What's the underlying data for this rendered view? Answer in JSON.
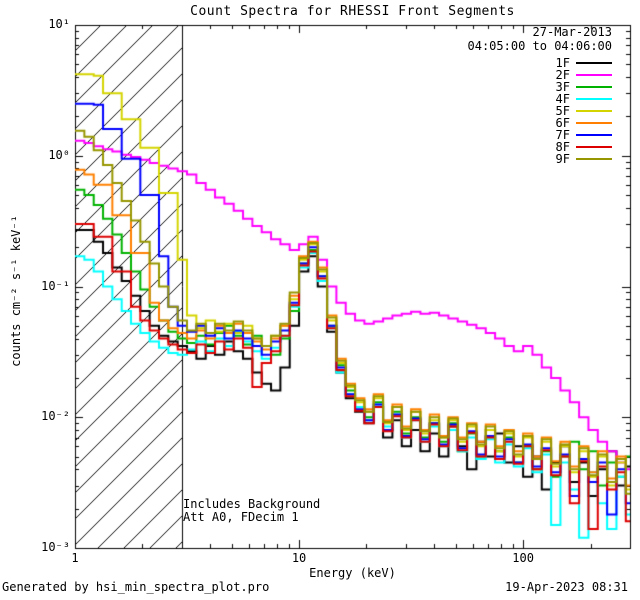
{
  "header": {
    "date": "27-Mar-2013",
    "time_range": "04:05:00 to 04:06:00"
  },
  "annotations": {
    "includes_background": "Includes Background",
    "attenuator": "Att A0, FDecim 1"
  },
  "footer": {
    "left": "Generated by hsi_min_spectra_plot.pro",
    "right": "19-Apr-2023 08:31"
  },
  "chart_data": {
    "type": "line",
    "step_mode": true,
    "title": "Count Spectra for RHESSI Front Segments",
    "xlabel": "Energy (keV)",
    "ylabel": "counts cm⁻² s⁻¹ keV⁻¹",
    "x_scale": "log",
    "y_scale": "log",
    "xlim": [
      1,
      300
    ],
    "ylim": [
      0.001,
      10
    ],
    "grid": false,
    "legend_position": "top-right",
    "hatch_region_kev": [
      1,
      3
    ],
    "xticks": [
      {
        "value": 1,
        "label": "1"
      },
      {
        "value": 10,
        "label": "10"
      },
      {
        "value": 100,
        "label": "100"
      }
    ],
    "yticks": [
      {
        "value": 10,
        "label": "10¹"
      },
      {
        "value": 1,
        "label": "10⁰"
      },
      {
        "value": 0.1,
        "label": "10⁻¹"
      },
      {
        "value": 0.01,
        "label": "10⁻²"
      },
      {
        "value": 0.001,
        "label": "10⁻³"
      }
    ],
    "energies_kev": [
      1.0,
      1.101,
      1.212,
      1.334,
      1.468,
      1.616,
      1.778,
      1.957,
      2.154,
      2.371,
      2.61,
      2.873,
      3.162,
      3.481,
      3.831,
      4.217,
      4.642,
      5.109,
      5.623,
      6.19,
      6.813,
      7.499,
      8.254,
      9.085,
      10.0,
      11.007,
      12.115,
      13.335,
      14.678,
      16.156,
      17.783,
      19.573,
      21.544,
      23.714,
      26.102,
      28.734,
      31.623,
      34.807,
      38.312,
      42.17,
      46.416,
      51.09,
      56.234,
      61.897,
      68.129,
      74.989,
      82.54,
      90.852,
      100.0,
      110.069,
      121.153,
      133.352,
      146.78,
      161.56,
      177.828,
      195.734,
      215.443,
      237.137,
      261.016,
      287.298
    ],
    "series": [
      {
        "name": "1F",
        "color": "#000000",
        "values": [
          0.27,
          0.27,
          0.22,
          0.18,
          0.14,
          0.11,
          0.085,
          0.065,
          0.05,
          0.042,
          0.038,
          0.035,
          0.032,
          0.028,
          0.035,
          0.03,
          0.038,
          0.032,
          0.028,
          0.022,
          0.018,
          0.016,
          0.024,
          0.05,
          0.13,
          0.17,
          0.1,
          0.045,
          0.022,
          0.014,
          0.011,
          0.009,
          0.012,
          0.007,
          0.0095,
          0.006,
          0.008,
          0.0055,
          0.0075,
          0.005,
          0.0085,
          0.006,
          0.004,
          0.0065,
          0.005,
          0.0075,
          0.0045,
          0.006,
          0.0035,
          0.005,
          0.0028,
          0.0045,
          0.006,
          0.0032,
          0.0045,
          0.0025,
          0.004,
          0.0055,
          0.003,
          0.0042
        ]
      },
      {
        "name": "2F",
        "color": "#ff00ff",
        "values": [
          1.3,
          1.25,
          1.18,
          1.12,
          1.08,
          1.02,
          0.98,
          0.93,
          0.88,
          0.84,
          0.8,
          0.76,
          0.72,
          0.62,
          0.55,
          0.48,
          0.43,
          0.38,
          0.33,
          0.29,
          0.26,
          0.23,
          0.21,
          0.19,
          0.21,
          0.24,
          0.16,
          0.1,
          0.075,
          0.062,
          0.055,
          0.052,
          0.054,
          0.057,
          0.06,
          0.062,
          0.064,
          0.062,
          0.063,
          0.06,
          0.057,
          0.054,
          0.051,
          0.048,
          0.044,
          0.04,
          0.035,
          0.032,
          0.035,
          0.03,
          0.024,
          0.02,
          0.016,
          0.013,
          0.01,
          0.008,
          0.0065,
          0.0055,
          0.0045,
          0.004
        ]
      },
      {
        "name": "3F",
        "color": "#00b200",
        "values": [
          0.55,
          0.5,
          0.42,
          0.33,
          0.25,
          0.18,
          0.13,
          0.095,
          0.07,
          0.055,
          0.045,
          0.04,
          0.037,
          0.042,
          0.036,
          0.044,
          0.05,
          0.042,
          0.036,
          0.042,
          0.035,
          0.03,
          0.04,
          0.065,
          0.15,
          0.19,
          0.12,
          0.05,
          0.025,
          0.016,
          0.012,
          0.01,
          0.013,
          0.008,
          0.011,
          0.0075,
          0.01,
          0.007,
          0.009,
          0.0065,
          0.009,
          0.0055,
          0.0075,
          0.005,
          0.008,
          0.0055,
          0.007,
          0.0045,
          0.006,
          0.004,
          0.0055,
          0.0035,
          0.005,
          0.0065,
          0.004,
          0.0055,
          0.003,
          0.0045,
          0.0035,
          0.005
        ]
      },
      {
        "name": "4F",
        "color": "#00ffff",
        "values": [
          0.17,
          0.16,
          0.13,
          0.1,
          0.08,
          0.065,
          0.052,
          0.044,
          0.038,
          0.034,
          0.031,
          0.03,
          0.033,
          0.038,
          0.032,
          0.04,
          0.035,
          0.045,
          0.038,
          0.032,
          0.028,
          0.034,
          0.042,
          0.07,
          0.14,
          0.18,
          0.11,
          0.048,
          0.022,
          0.015,
          0.012,
          0.0095,
          0.0125,
          0.0085,
          0.0105,
          0.007,
          0.0095,
          0.0065,
          0.0085,
          0.006,
          0.008,
          0.0055,
          0.007,
          0.0048,
          0.0068,
          0.0045,
          0.0062,
          0.0042,
          0.0058,
          0.0038,
          0.0052,
          0.0015,
          0.0045,
          0.0028,
          0.0012,
          0.0038,
          0.0022,
          0.0014,
          0.0035,
          0.0018
        ]
      },
      {
        "name": "5F",
        "color": "#d4d400",
        "values": [
          4.2,
          4.2,
          4.1,
          3.0,
          3.0,
          1.9,
          1.9,
          1.15,
          1.15,
          0.52,
          0.52,
          0.16,
          0.06,
          0.048,
          0.055,
          0.045,
          0.052,
          0.044,
          0.05,
          0.04,
          0.035,
          0.042,
          0.05,
          0.08,
          0.16,
          0.21,
          0.13,
          0.055,
          0.026,
          0.017,
          0.013,
          0.011,
          0.014,
          0.009,
          0.012,
          0.008,
          0.011,
          0.0075,
          0.0095,
          0.007,
          0.0095,
          0.0065,
          0.0085,
          0.006,
          0.008,
          0.0055,
          0.0075,
          0.005,
          0.007,
          0.0048,
          0.0065,
          0.0042,
          0.006,
          0.0038,
          0.0055,
          0.0035,
          0.005,
          0.003,
          0.0045,
          0.0028
        ]
      },
      {
        "name": "6F",
        "color": "#ff8000",
        "values": [
          0.78,
          0.72,
          0.6,
          0.6,
          0.35,
          0.35,
          0.18,
          0.18,
          0.075,
          0.055,
          0.048,
          0.044,
          0.04,
          0.046,
          0.04,
          0.05,
          0.044,
          0.052,
          0.044,
          0.038,
          0.033,
          0.04,
          0.05,
          0.085,
          0.17,
          0.22,
          0.14,
          0.06,
          0.028,
          0.018,
          0.014,
          0.0115,
          0.015,
          0.0095,
          0.0125,
          0.0085,
          0.0115,
          0.008,
          0.0105,
          0.0072,
          0.01,
          0.007,
          0.009,
          0.0065,
          0.0088,
          0.006,
          0.008,
          0.0055,
          0.0075,
          0.005,
          0.007,
          0.0046,
          0.0065,
          0.0042,
          0.006,
          0.0038,
          0.0055,
          0.0034,
          0.005,
          0.003
        ]
      },
      {
        "name": "7F",
        "color": "#0000ff",
        "values": [
          2.5,
          2.5,
          2.45,
          1.6,
          1.6,
          0.95,
          0.95,
          0.5,
          0.5,
          0.17,
          0.07,
          0.05,
          0.045,
          0.05,
          0.042,
          0.048,
          0.04,
          0.046,
          0.04,
          0.035,
          0.03,
          0.038,
          0.046,
          0.075,
          0.15,
          0.2,
          0.12,
          0.05,
          0.024,
          0.015,
          0.0115,
          0.0095,
          0.0125,
          0.008,
          0.0105,
          0.0072,
          0.0098,
          0.0068,
          0.009,
          0.0062,
          0.0088,
          0.0058,
          0.0078,
          0.0052,
          0.0072,
          0.005,
          0.0068,
          0.0045,
          0.0062,
          0.0042,
          0.0058,
          0.0038,
          0.0052,
          0.0025,
          0.0048,
          0.0032,
          0.0045,
          0.0018,
          0.004,
          0.0022
        ]
      },
      {
        "name": "8F",
        "color": "#dd0000",
        "values": [
          0.3,
          0.3,
          0.24,
          0.24,
          0.13,
          0.13,
          0.07,
          0.055,
          0.046,
          0.04,
          0.036,
          0.033,
          0.031,
          0.036,
          0.031,
          0.038,
          0.033,
          0.04,
          0.034,
          0.017,
          0.026,
          0.032,
          0.042,
          0.072,
          0.145,
          0.185,
          0.115,
          0.048,
          0.023,
          0.0145,
          0.0112,
          0.009,
          0.012,
          0.0078,
          0.0102,
          0.007,
          0.0095,
          0.0065,
          0.0088,
          0.006,
          0.0085,
          0.0056,
          0.0076,
          0.005,
          0.007,
          0.0048,
          0.0065,
          0.0044,
          0.006,
          0.004,
          0.0056,
          0.0036,
          0.005,
          0.0022,
          0.0046,
          0.0014,
          0.0042,
          0.0028,
          0.0038,
          0.0016
        ]
      },
      {
        "name": "9F",
        "color": "#969600",
        "values": [
          1.55,
          1.4,
          1.1,
          0.85,
          0.62,
          0.45,
          0.32,
          0.22,
          0.15,
          0.1,
          0.07,
          0.055,
          0.046,
          0.052,
          0.044,
          0.052,
          0.046,
          0.054,
          0.046,
          0.04,
          0.035,
          0.042,
          0.052,
          0.09,
          0.165,
          0.215,
          0.135,
          0.058,
          0.027,
          0.0175,
          0.0135,
          0.011,
          0.0145,
          0.0092,
          0.012,
          0.0082,
          0.011,
          0.0078,
          0.01,
          0.007,
          0.0098,
          0.0068,
          0.0088,
          0.0062,
          0.0085,
          0.0058,
          0.0078,
          0.0052,
          0.0072,
          0.0048,
          0.0068,
          0.0044,
          0.0062,
          0.004,
          0.0058,
          0.0036,
          0.0052,
          0.0032,
          0.0048,
          0.0026
        ]
      }
    ]
  }
}
